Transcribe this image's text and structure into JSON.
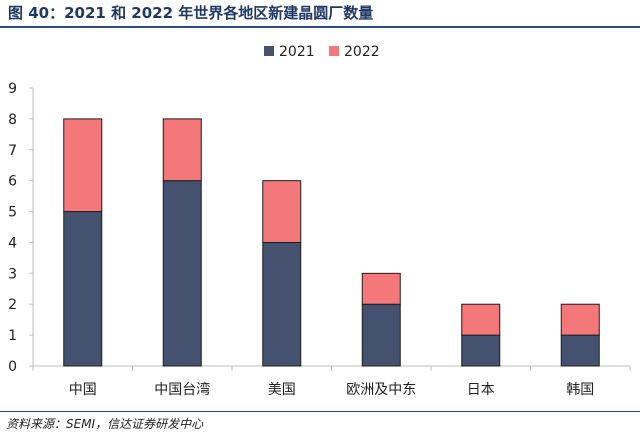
{
  "header": {
    "title": "图 40：2021 和 2022 年世界各地区新建晶圆厂数量"
  },
  "footer": {
    "source": "资料来源：SEMI，信达证券研发中心"
  },
  "colors": {
    "s2021": "#44526f",
    "s2022": "#f4777a",
    "axis": "#bfbfbf"
  },
  "chart_data": {
    "type": "bar",
    "stacked": true,
    "categories": [
      "中国",
      "中国台湾",
      "美国",
      "欧洲及中东",
      "日本",
      "韩国"
    ],
    "series": [
      {
        "name": "2021",
        "values": [
          5,
          6,
          4,
          2,
          1,
          1
        ]
      },
      {
        "name": "2022",
        "values": [
          3,
          2,
          2,
          1,
          1,
          1
        ]
      }
    ],
    "ylim": [
      0,
      9
    ],
    "yticks": [
      "0",
      "1",
      "2",
      "3",
      "4",
      "5",
      "6",
      "7",
      "8",
      "9"
    ],
    "legend": "top-center",
    "grid": false
  }
}
